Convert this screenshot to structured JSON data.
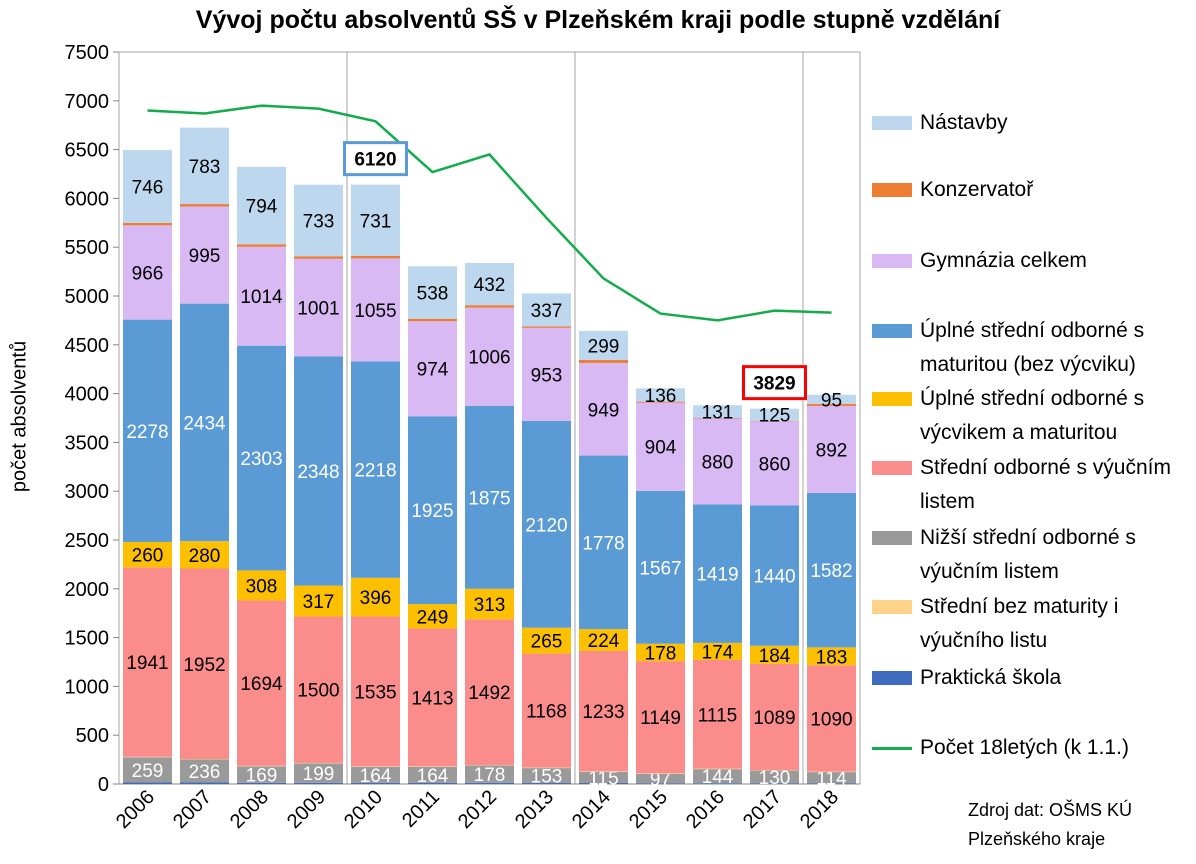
{
  "chart_data": {
    "type": "bar",
    "stacked": true,
    "title": "Vývoj počtu absolventů SŠ v Plzeňském kraji podle stupně vzdělání",
    "ylabel": "počet absolventů",
    "xlabel": "",
    "ylim": [
      0,
      7500
    ],
    "yticks": [
      "0",
      "500",
      "1000",
      "1500",
      "2000",
      "2500",
      "3000",
      "3500",
      "4000",
      "4500",
      "5000",
      "5500",
      "6000",
      "6500",
      "7000",
      "7500"
    ],
    "grid": "vertical lines every 4 years",
    "legend_position": "right",
    "categories": [
      "2006",
      "2007",
      "2008",
      "2009",
      "2010",
      "2011",
      "2012",
      "2013",
      "2014",
      "2015",
      "2016",
      "2017",
      "2018"
    ],
    "series": [
      {
        "name": "Praktická škola",
        "color": "#3f6bbf",
        "values": [
          15,
          15,
          12,
          12,
          12,
          12,
          12,
          10,
          10,
          8,
          8,
          8,
          8
        ],
        "label_color": null
      },
      {
        "name": "Nižší střední odborné s výučním listem",
        "color": "#9a9a9a",
        "values": [
          259,
          236,
          169,
          199,
          164,
          164,
          178,
          153,
          115,
          97,
          144,
          130,
          114
        ],
        "label_color": "#ffffff"
      },
      {
        "name": "Střední bez maturity i výučního listu",
        "color": "#fdd38b",
        "values": [
          5,
          5,
          5,
          5,
          5,
          5,
          5,
          5,
          5,
          5,
          5,
          5,
          5
        ],
        "label_color": null
      },
      {
        "name": "Střední odborné s výučním listem",
        "color": "#fa8c8c",
        "values": [
          1941,
          1952,
          1694,
          1500,
          1535,
          1413,
          1492,
          1168,
          1233,
          1149,
          1115,
          1089,
          1090
        ],
        "label_color": "#000000"
      },
      {
        "name": "Úplné střední odborné s výcvikem a maturitou",
        "color": "#fdc000",
        "values": [
          260,
          280,
          308,
          317,
          396,
          249,
          313,
          265,
          224,
          178,
          174,
          184,
          183
        ],
        "label_color": "#000000"
      },
      {
        "name": "Úplné střední odborné s maturitou (bez výcviku)",
        "color": "#5b9bd5",
        "values": [
          2278,
          2434,
          2303,
          2348,
          2218,
          1925,
          1875,
          2120,
          1778,
          1567,
          1419,
          1440,
          1582
        ],
        "label_color": "#ffffff"
      },
      {
        "name": "Gymnázia celkem",
        "color": "#d8b9f4",
        "values": [
          966,
          995,
          1014,
          1001,
          1055,
          974,
          1006,
          953,
          949,
          904,
          880,
          860,
          892
        ],
        "label_color": "#000000"
      },
      {
        "name": "Konzervatoř",
        "color": "#ed7d31",
        "values": [
          25,
          25,
          25,
          25,
          25,
          25,
          25,
          15,
          30,
          10,
          5,
          5,
          20
        ],
        "label_color": null
      },
      {
        "name": "Nástavby",
        "color": "#bdd7ee",
        "values": [
          746,
          783,
          794,
          733,
          731,
          538,
          432,
          337,
          299,
          136,
          131,
          125,
          95
        ],
        "label_color": "#000000"
      }
    ],
    "line_series": {
      "name": "Počet 18letých (k 1.1.)",
      "color": "#12ad4a",
      "values": [
        6900,
        6870,
        6950,
        6920,
        6790,
        6270,
        6450,
        5800,
        5180,
        4820,
        4750,
        4850,
        4830
      ]
    },
    "annotations": [
      {
        "category": "2010",
        "text": "6120",
        "border_color": "#5b9bd5"
      },
      {
        "category": "2017",
        "text": "3829",
        "border_color": "#ff0000"
      }
    ]
  },
  "legend_items": [
    {
      "text": "Nástavby",
      "color": "#bdd7ee",
      "kind": "box"
    },
    {
      "text": "Konzervatoř",
      "color": "#ed7d31",
      "kind": "box"
    },
    {
      "text": "Gymnázia celkem",
      "color": "#d8b9f4",
      "kind": "box"
    },
    {
      "text": "Úplné střední odborné s maturitou (bez výcviku)",
      "color": "#5b9bd5",
      "kind": "box"
    },
    {
      "text": "Úplné střední odborné s výcvikem a maturitou",
      "color": "#fdc000",
      "kind": "box"
    },
    {
      "text": "Střední odborné s výučním listem",
      "color": "#fa8c8c",
      "kind": "box"
    },
    {
      "text": "Nižší střední odborné s výučním listem",
      "color": "#9a9a9a",
      "kind": "box"
    },
    {
      "text": "Střední bez maturity i výučního listu",
      "color": "#fdd38b",
      "kind": "box"
    },
    {
      "text": "Praktická škola",
      "color": "#3f6bbf",
      "kind": "box"
    },
    {
      "text": "Počet 18letých (k 1.1.)",
      "color": "#12ad4a",
      "kind": "line"
    }
  ],
  "source": {
    "line1": "Zdroj dat: OŠMS KÚ",
    "line2": "Plzeňského  kraje"
  }
}
